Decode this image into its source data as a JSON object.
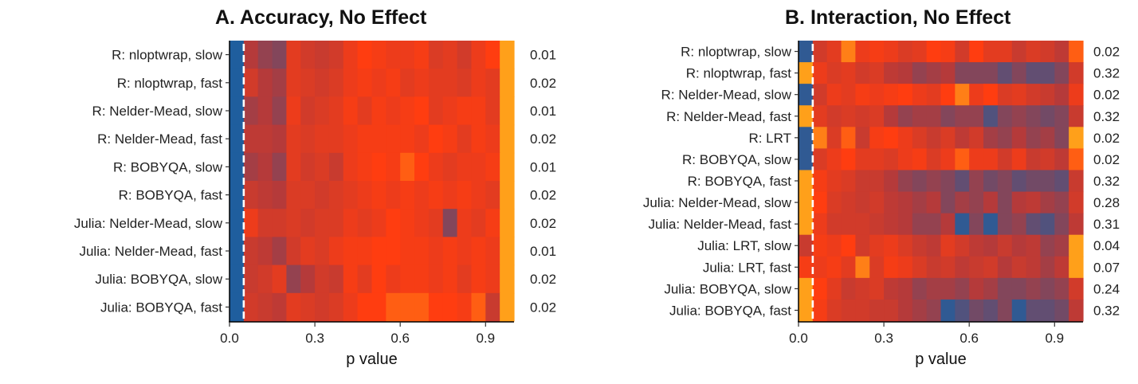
{
  "colors": {
    "low": "#1f5e9e",
    "mid": "#b53a3a",
    "high": "#ff3d10",
    "top": "#ffa01a",
    "reference_line": "#ffffff"
  },
  "chart_data": [
    {
      "type": "heatmap",
      "title": "A. Accuracy, No Effect",
      "xlabel": "p value",
      "ylabel": "",
      "xlim": [
        0,
        1
      ],
      "x_ticks": [
        "0.0",
        "0.3",
        "0.6",
        "0.9"
      ],
      "x_tick_values": [
        0,
        0.3,
        0.6,
        0.9
      ],
      "reference_line_x": 0.05,
      "bins": 20,
      "rows": [
        {
          "label": "R: nloptwrap, slow",
          "p_value_text": "0.01",
          "intensity": [
            0.0,
            0.45,
            0.35,
            0.3,
            0.7,
            0.6,
            0.55,
            0.6,
            0.75,
            0.85,
            0.8,
            0.75,
            0.75,
            0.8,
            0.65,
            0.7,
            0.6,
            0.75,
            0.85,
            1.0
          ]
        },
        {
          "label": "R: nloptwrap, fast",
          "p_value_text": "0.02",
          "intensity": [
            0.0,
            0.6,
            0.45,
            0.4,
            0.7,
            0.65,
            0.6,
            0.65,
            0.75,
            0.8,
            0.75,
            0.8,
            0.7,
            0.75,
            0.7,
            0.7,
            0.65,
            0.75,
            0.7,
            1.0
          ]
        },
        {
          "label": "R: Nelder-Mead, slow",
          "p_value_text": "0.01",
          "intensity": [
            0.0,
            0.4,
            0.45,
            0.35,
            0.75,
            0.6,
            0.65,
            0.7,
            0.8,
            0.7,
            0.8,
            0.75,
            0.8,
            0.85,
            0.7,
            0.75,
            0.8,
            0.8,
            0.7,
            1.0
          ]
        },
        {
          "label": "R: Nelder-Mead, fast",
          "p_value_text": "0.02",
          "intensity": [
            0.0,
            0.5,
            0.5,
            0.45,
            0.7,
            0.65,
            0.7,
            0.7,
            0.75,
            0.8,
            0.8,
            0.8,
            0.8,
            0.75,
            0.85,
            0.8,
            0.7,
            0.8,
            0.75,
            1.0
          ]
        },
        {
          "label": "R: BOBYQA, slow",
          "p_value_text": "0.01",
          "intensity": [
            0.0,
            0.4,
            0.45,
            0.35,
            0.7,
            0.6,
            0.65,
            0.55,
            0.75,
            0.8,
            0.85,
            0.8,
            0.9,
            0.85,
            0.75,
            0.7,
            0.75,
            0.75,
            0.8,
            1.0
          ]
        },
        {
          "label": "R: BOBYQA, fast",
          "p_value_text": "0.02",
          "intensity": [
            0.0,
            0.55,
            0.5,
            0.45,
            0.65,
            0.65,
            0.6,
            0.65,
            0.7,
            0.75,
            0.8,
            0.75,
            0.8,
            0.75,
            0.8,
            0.75,
            0.8,
            0.75,
            0.7,
            1.0
          ]
        },
        {
          "label": "Julia: Nelder-Mead, slow",
          "p_value_text": "0.02",
          "intensity": [
            0.0,
            0.75,
            0.6,
            0.6,
            0.65,
            0.6,
            0.65,
            0.65,
            0.75,
            0.7,
            0.75,
            0.85,
            0.8,
            0.75,
            0.7,
            0.3,
            0.75,
            0.7,
            0.8,
            1.0
          ]
        },
        {
          "label": "Julia: Nelder-Mead, fast",
          "p_value_text": "0.01",
          "intensity": [
            0.0,
            0.55,
            0.5,
            0.4,
            0.6,
            0.7,
            0.65,
            0.75,
            0.8,
            0.8,
            0.85,
            0.85,
            0.8,
            0.8,
            0.75,
            0.8,
            0.75,
            0.8,
            0.75,
            1.0
          ]
        },
        {
          "label": "Julia: BOBYQA, slow",
          "p_value_text": "0.02",
          "intensity": [
            0.0,
            0.55,
            0.6,
            0.7,
            0.35,
            0.45,
            0.6,
            0.55,
            0.8,
            0.7,
            0.85,
            0.75,
            0.8,
            0.8,
            0.75,
            0.8,
            0.7,
            0.8,
            0.75,
            1.0
          ]
        },
        {
          "label": "Julia: BOBYQA, fast",
          "p_value_text": "0.02",
          "intensity": [
            0.0,
            0.6,
            0.55,
            0.5,
            0.7,
            0.65,
            0.6,
            0.65,
            0.75,
            0.85,
            0.85,
            0.9,
            0.9,
            0.9,
            0.85,
            0.85,
            0.8,
            0.9,
            0.55,
            1.0
          ]
        }
      ]
    },
    {
      "type": "heatmap",
      "title": "B. Interaction, No Effect",
      "xlabel": "p value",
      "ylabel": "",
      "xlim": [
        0,
        1
      ],
      "x_ticks": [
        "0.0",
        "0.3",
        "0.6",
        "0.9"
      ],
      "x_tick_values": [
        0,
        0.3,
        0.6,
        0.9
      ],
      "reference_line_x": 0.05,
      "bins": 20,
      "rows": [
        {
          "label": "R: nloptwrap, slow",
          "p_value_text": "0.02",
          "intensity": [
            0.05,
            0.6,
            0.7,
            0.95,
            0.75,
            0.8,
            0.75,
            0.65,
            0.7,
            0.85,
            0.8,
            0.6,
            0.85,
            0.7,
            0.7,
            0.55,
            0.65,
            0.6,
            0.5,
            0.9
          ]
        },
        {
          "label": "R: nloptwrap, fast",
          "p_value_text": "0.32",
          "intensity": [
            1.0,
            0.75,
            0.65,
            0.7,
            0.6,
            0.65,
            0.5,
            0.45,
            0.35,
            0.4,
            0.45,
            0.3,
            0.3,
            0.3,
            0.2,
            0.3,
            0.2,
            0.2,
            0.3,
            0.6
          ]
        },
        {
          "label": "R: Nelder-Mead, slow",
          "p_value_text": "0.02",
          "intensity": [
            0.05,
            0.6,
            0.75,
            0.7,
            0.8,
            0.75,
            0.8,
            0.85,
            0.75,
            0.7,
            0.85,
            0.95,
            0.75,
            0.85,
            0.65,
            0.7,
            0.6,
            0.55,
            0.45,
            0.75
          ]
        },
        {
          "label": "R: Nelder-Mead, fast",
          "p_value_text": "0.32",
          "intensity": [
            1.0,
            0.7,
            0.6,
            0.65,
            0.6,
            0.65,
            0.45,
            0.35,
            0.4,
            0.4,
            0.3,
            0.35,
            0.35,
            0.15,
            0.3,
            0.35,
            0.3,
            0.25,
            0.3,
            0.55
          ]
        },
        {
          "label": "R: LRT",
          "p_value_text": "0.02",
          "intensity": [
            0.05,
            0.95,
            0.65,
            0.9,
            0.55,
            0.8,
            0.85,
            0.75,
            0.65,
            0.55,
            0.65,
            0.5,
            0.6,
            0.4,
            0.35,
            0.45,
            0.35,
            0.4,
            0.3,
            1.0
          ]
        },
        {
          "label": "R: BOBYQA, slow",
          "p_value_text": "0.02",
          "intensity": [
            0.05,
            0.65,
            0.75,
            0.85,
            0.7,
            0.7,
            0.65,
            0.75,
            0.8,
            0.65,
            0.75,
            0.9,
            0.75,
            0.75,
            0.6,
            0.75,
            0.55,
            0.6,
            0.5,
            0.9
          ]
        },
        {
          "label": "R: BOBYQA, fast",
          "p_value_text": "0.32",
          "intensity": [
            1.0,
            0.8,
            0.7,
            0.65,
            0.55,
            0.55,
            0.45,
            0.35,
            0.3,
            0.35,
            0.3,
            0.2,
            0.35,
            0.25,
            0.3,
            0.2,
            0.25,
            0.25,
            0.2,
            0.55
          ]
        },
        {
          "label": "Julia: Nelder-Mead, slow",
          "p_value_text": "0.28",
          "intensity": [
            1.0,
            0.85,
            0.65,
            0.6,
            0.55,
            0.6,
            0.5,
            0.45,
            0.4,
            0.45,
            0.3,
            0.4,
            0.35,
            0.45,
            0.3,
            0.45,
            0.5,
            0.4,
            0.35,
            0.6
          ]
        },
        {
          "label": "Julia: Nelder-Mead, fast",
          "p_value_text": "0.31",
          "intensity": [
            1.0,
            0.75,
            0.6,
            0.6,
            0.6,
            0.55,
            0.5,
            0.45,
            0.35,
            0.35,
            0.45,
            0.05,
            0.3,
            0.05,
            0.3,
            0.35,
            0.2,
            0.15,
            0.3,
            0.5
          ]
        },
        {
          "label": "Julia: LRT, slow",
          "p_value_text": "0.04",
          "intensity": [
            0.55,
            0.8,
            0.75,
            0.85,
            0.6,
            0.7,
            0.75,
            0.65,
            0.55,
            0.5,
            0.7,
            0.6,
            0.5,
            0.45,
            0.55,
            0.45,
            0.5,
            0.35,
            0.4,
            1.0
          ]
        },
        {
          "label": "Julia: LRT, fast",
          "p_value_text": "0.07",
          "intensity": [
            0.8,
            0.75,
            0.8,
            0.7,
            0.95,
            0.65,
            0.8,
            0.75,
            0.65,
            0.55,
            0.6,
            0.5,
            0.55,
            0.6,
            0.45,
            0.55,
            0.5,
            0.4,
            0.5,
            1.0
          ]
        },
        {
          "label": "Julia: BOBYQA, slow",
          "p_value_text": "0.24",
          "intensity": [
            1.0,
            0.85,
            0.7,
            0.55,
            0.6,
            0.65,
            0.5,
            0.45,
            0.35,
            0.4,
            0.4,
            0.35,
            0.45,
            0.4,
            0.3,
            0.3,
            0.35,
            0.3,
            0.35,
            0.6
          ]
        },
        {
          "label": "Julia: BOBYQA, fast",
          "p_value_text": "0.32",
          "intensity": [
            1.0,
            0.8,
            0.65,
            0.6,
            0.6,
            0.55,
            0.55,
            0.45,
            0.4,
            0.35,
            0.05,
            0.15,
            0.25,
            0.2,
            0.3,
            0.05,
            0.2,
            0.2,
            0.25,
            0.5
          ]
        }
      ]
    }
  ]
}
